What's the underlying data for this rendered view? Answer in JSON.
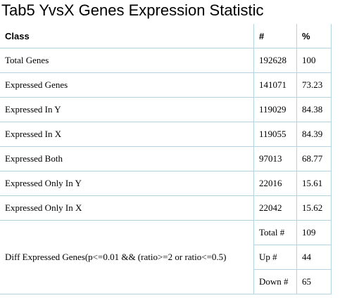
{
  "title": "Tab5 YvsX Genes Expression Statistic",
  "table": {
    "headers": [
      "Class",
      "#",
      "%"
    ],
    "rows": [
      {
        "class": "Total Genes",
        "count": "192628",
        "percent": "100"
      },
      {
        "class": "Expressed Genes",
        "count": "141071",
        "percent": "73.23"
      },
      {
        "class": "Expressed In Y",
        "count": "119029",
        "percent": "84.38"
      },
      {
        "class": "Expressed In X",
        "count": "119055",
        "percent": "84.39"
      },
      {
        "class": "Expressed Both",
        "count": "97013",
        "percent": "68.77"
      },
      {
        "class": "Expressed Only In Y",
        "count": "22016",
        "percent": "15.61"
      },
      {
        "class": "Expressed Only In X",
        "count": "22042",
        "percent": "15.62"
      }
    ],
    "diff": {
      "class": "Diff Expressed Genes(p<=0.01 && (ratio>=2 or ratio<=0.5)",
      "rows": [
        {
          "label": "Total #",
          "value": "109"
        },
        {
          "label": "Up #",
          "value": "44"
        },
        {
          "label": "Down #",
          "value": "65"
        }
      ]
    }
  },
  "colors": {
    "border": "#b5d4e2",
    "text": "#000000",
    "background": "#ffffff"
  }
}
